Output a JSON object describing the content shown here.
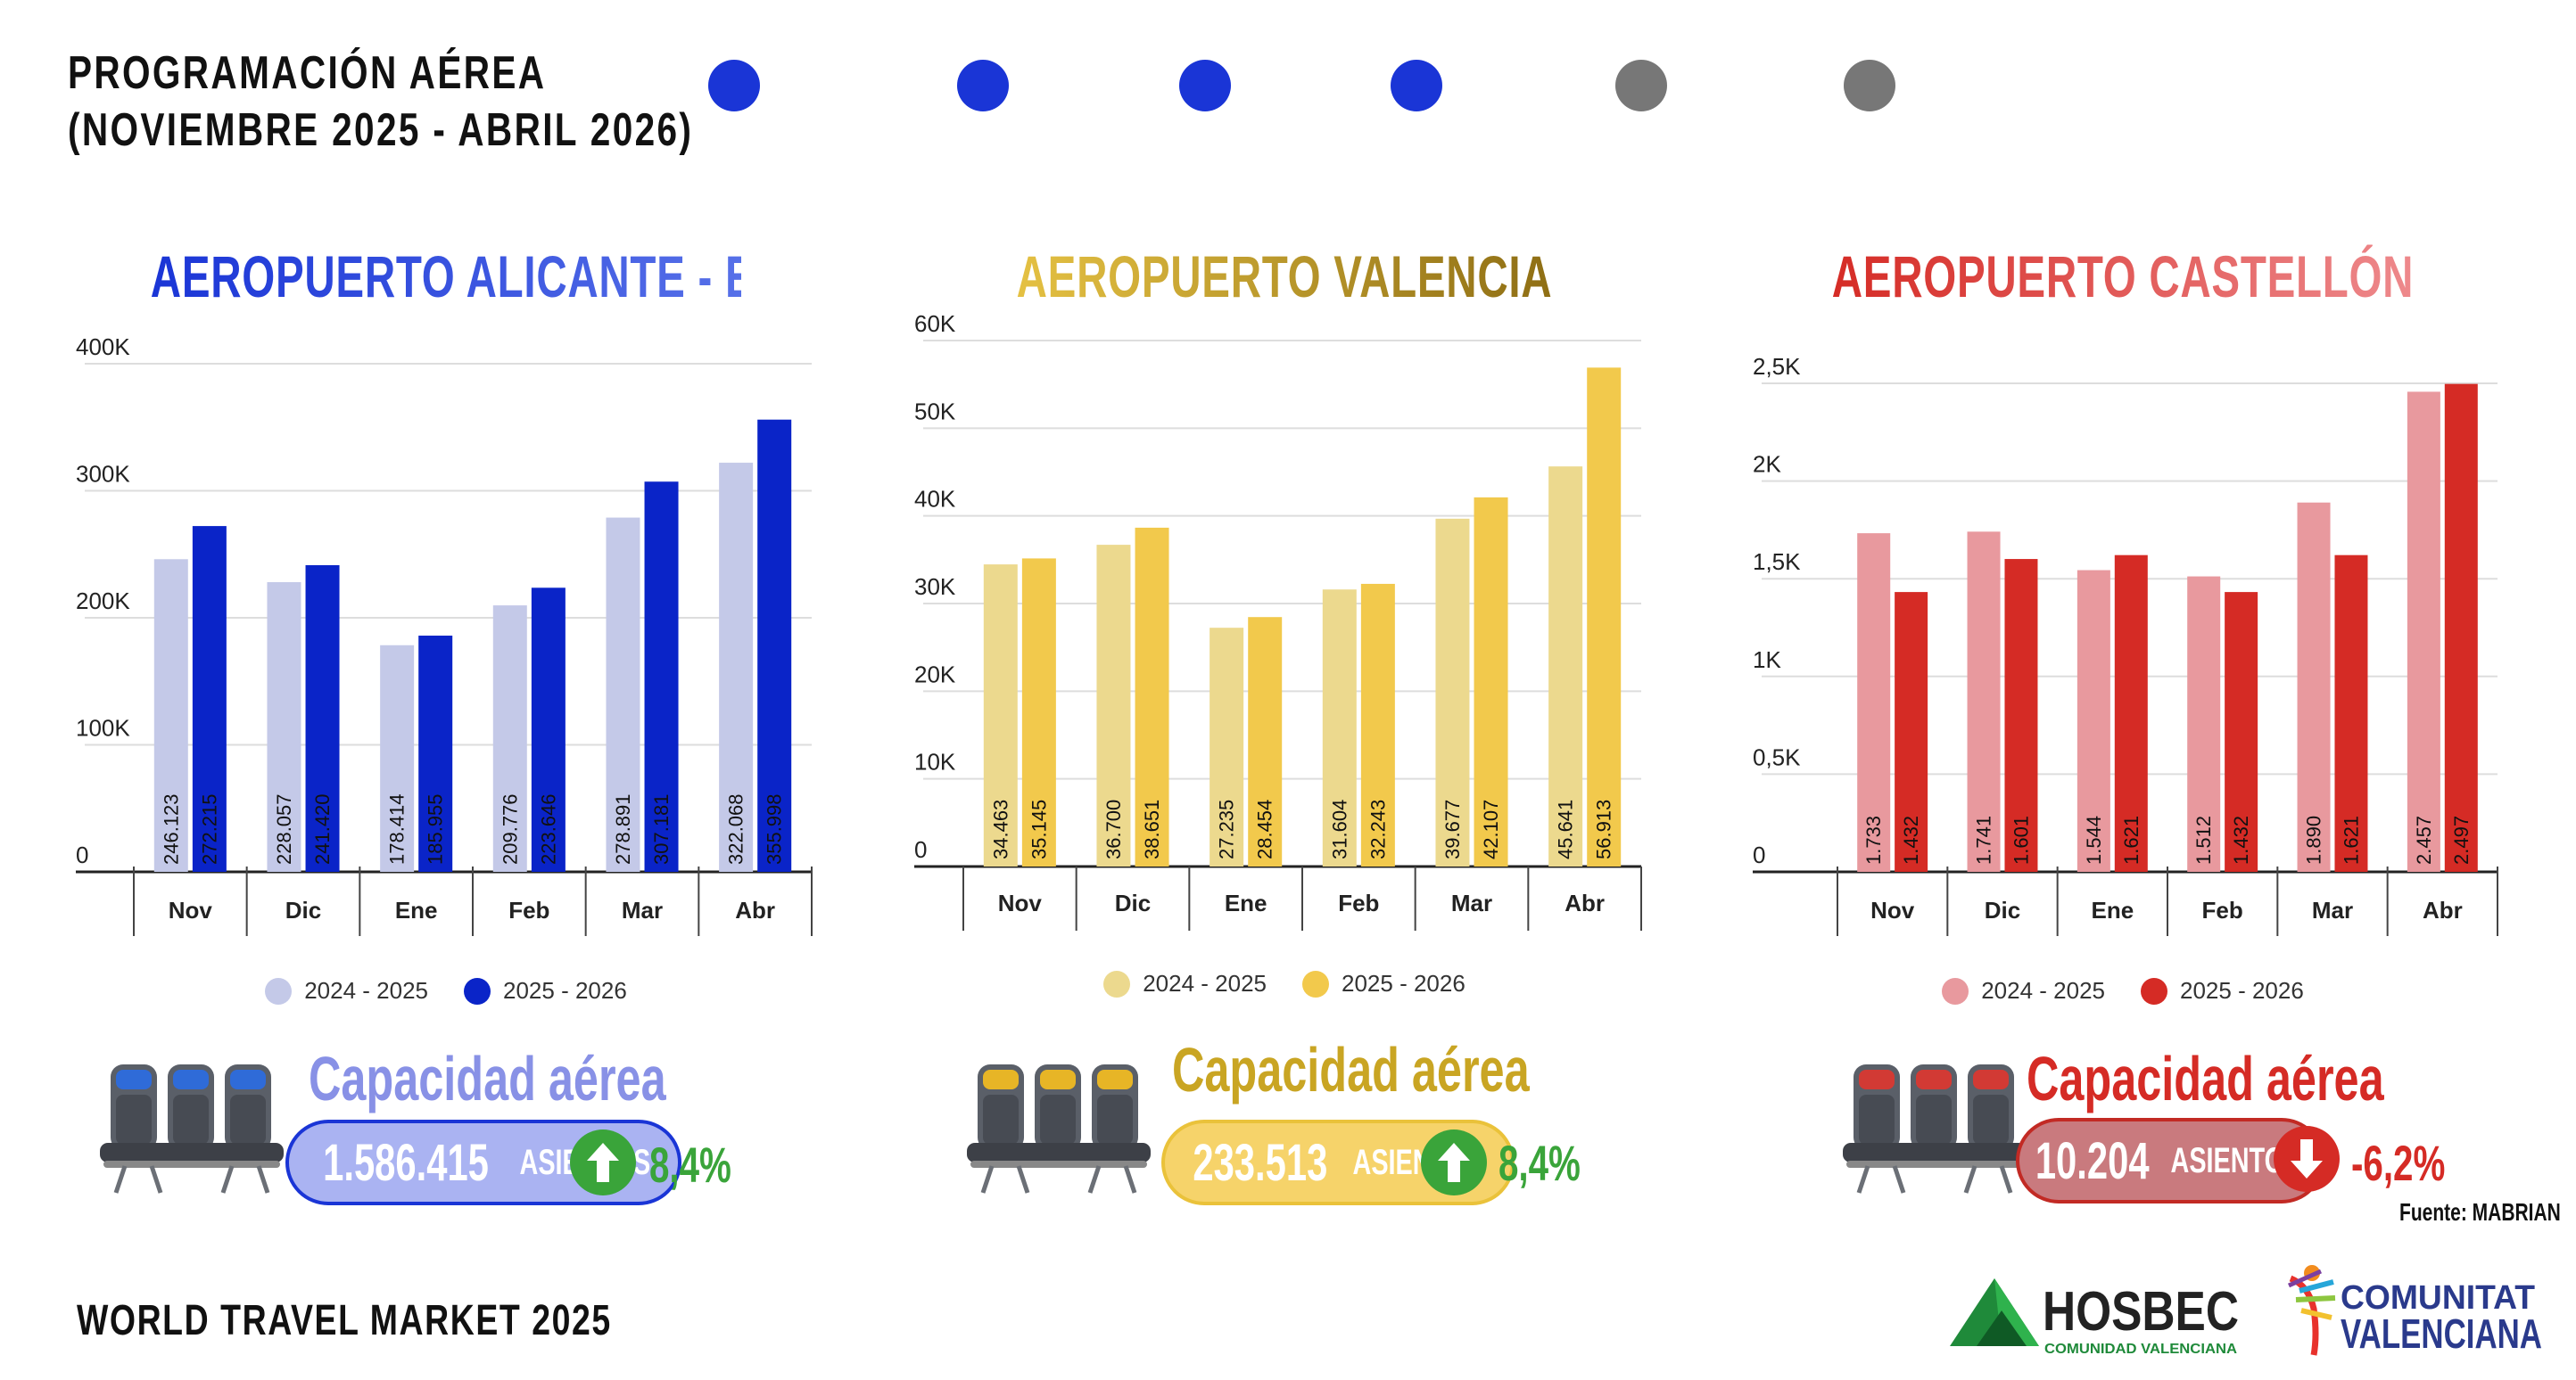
{
  "header": {
    "title_line1": "PROGRAMACIÓN AÉREA",
    "title_line2": "(NOVIEMBRE 2025 - ABRIL 2026)"
  },
  "progress": {
    "total_steps": 6,
    "active_steps": 4,
    "active_color": "#1a35d6",
    "inactive_color": "#777777"
  },
  "chart_data": [
    {
      "type": "bar",
      "title": "AEROPUERTO ALICANTE - ELCHE",
      "categories": [
        "Nov",
        "Dic",
        "Ene",
        "Feb",
        "Mar",
        "Abr"
      ],
      "yticks": [
        "0",
        "100K",
        "200K",
        "300K",
        "400K"
      ],
      "ylim": [
        0,
        400000
      ],
      "grid": true,
      "legend_position": "bottom",
      "series": [
        {
          "name": "2024 - 2025",
          "color": "#c4c9e8",
          "values": [
            246123,
            228057,
            178414,
            209776,
            278891,
            322068
          ],
          "labels": [
            "246.123",
            "228.057",
            "178.414",
            "209.776",
            "278.891",
            "322.068"
          ]
        },
        {
          "name": "2025 - 2026",
          "color": "#0a24c8",
          "values": [
            272215,
            241420,
            185955,
            223646,
            307181,
            355998
          ],
          "labels": [
            "272.215",
            "241.420",
            "185.955",
            "223.646",
            "307.181",
            "355.998"
          ]
        }
      ]
    },
    {
      "type": "bar",
      "title": "AEROPUERTO VALENCIA",
      "categories": [
        "Nov",
        "Dic",
        "Ene",
        "Feb",
        "Mar",
        "Abr"
      ],
      "yticks": [
        "0",
        "10K",
        "20K",
        "30K",
        "40K",
        "50K",
        "60K"
      ],
      "ylim": [
        0,
        60000
      ],
      "grid": true,
      "legend_position": "bottom",
      "series": [
        {
          "name": "2024 - 2025",
          "color": "#ecd98e",
          "values": [
            34463,
            36700,
            27235,
            31604,
            39677,
            45641
          ],
          "labels": [
            "34.463",
            "36.700",
            "27.235",
            "31.604",
            "39.677",
            "45.641"
          ]
        },
        {
          "name": "2025 - 2026",
          "color": "#f2c94c",
          "values": [
            35145,
            38651,
            28454,
            32243,
            42107,
            56913
          ],
          "labels": [
            "35.145",
            "38.651",
            "28.454",
            "32.243",
            "42.107",
            "56.913"
          ]
        }
      ]
    },
    {
      "type": "bar",
      "title": "AEROPUERTO CASTELLÓN",
      "categories": [
        "Nov",
        "Dic",
        "Ene",
        "Feb",
        "Mar",
        "Abr"
      ],
      "yticks": [
        "0",
        "0,5K",
        "1K",
        "1,5K",
        "2K",
        "2,5K"
      ],
      "ylim": [
        0,
        2500
      ],
      "grid": true,
      "legend_position": "bottom",
      "series": [
        {
          "name": "2024 - 2025",
          "color": "#e8999e",
          "values": [
            1733,
            1741,
            1544,
            1512,
            1890,
            2457
          ],
          "labels": [
            "1.733",
            "1.741",
            "1.544",
            "1.512",
            "1.890",
            "2.457"
          ]
        },
        {
          "name": "2025 - 2026",
          "color": "#d52b25",
          "values": [
            1432,
            1601,
            1621,
            1432,
            1621,
            2497
          ],
          "labels": [
            "1.432",
            "1.601",
            "1.621",
            "1.432",
            "1.621",
            "2.497"
          ]
        }
      ]
    }
  ],
  "capacity": [
    {
      "label": "Capacidad aérea",
      "value": "1.586.415",
      "unit": "ASIENTOS",
      "change": "8,4%",
      "direction": "up",
      "title_color": "#8891e6",
      "pill_fill": "#aab3f2",
      "pill_border": "#1a35d6",
      "change_color": "#3aa43a",
      "arrow_color": "#3aa43a",
      "seat_accent": "#2f6bd8"
    },
    {
      "label": "Capacidad aérea",
      "value": "233.513",
      "unit": "ASIENTOS",
      "change": "8,4%",
      "direction": "up",
      "title_color": "#c9a523",
      "pill_fill": "#f6d36a",
      "pill_border": "#eac23a",
      "change_color": "#3aa43a",
      "arrow_color": "#3aa43a",
      "seat_accent": "#e7b526"
    },
    {
      "label": "Capacidad aérea",
      "value": "10.204",
      "unit": "ASIENTOS",
      "change": "-6,2%",
      "direction": "down",
      "title_color": "#d52b25",
      "pill_fill": "#c97a7e",
      "pill_border": "#c22a24",
      "change_color": "#d52b25",
      "arrow_color": "#d52b25",
      "seat_accent": "#d23a34"
    }
  ],
  "source": "Fuente: MABRIAN",
  "footer": "WORLD TRAVEL MARKET 2025",
  "logos": {
    "hosbec_name": "HOSBEC",
    "hosbec_tagline": "COMUNIDAD VALENCIANA",
    "cv_line1": "COMUNITAT",
    "cv_line2": "VALENCIANA"
  },
  "colors": {
    "title_alicante": "#1a35d6",
    "title_valencia": "#d9b43a",
    "title_castellon": "#d52b25"
  }
}
